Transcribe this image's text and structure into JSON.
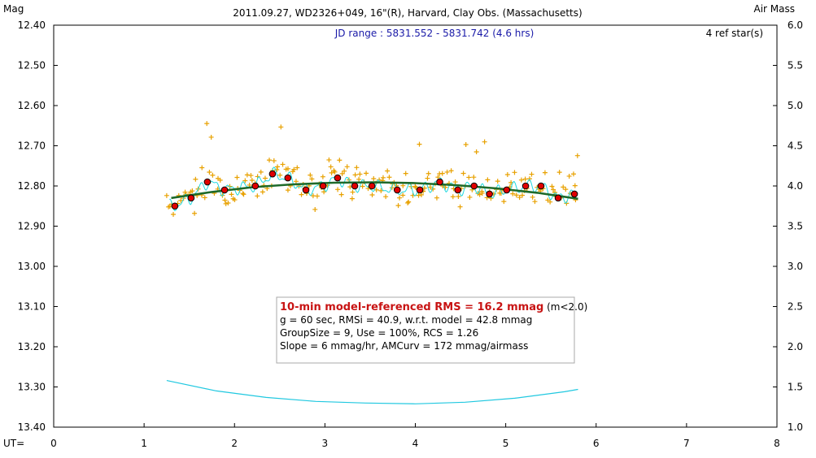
{
  "header": {
    "left_label": "Mag",
    "title": "2011.09.27, WD2326+049, 16\"(R), Harvard, Clay Obs. (Massachusetts)",
    "right_label": "Air Mass",
    "jd_range": "JD range : 5831.552 - 5831.742 (4.6 hrs)",
    "ref_stars": "4 ref star(s)",
    "x_label": "UT="
  },
  "stats": {
    "line1_bold": "10-min model-referenced RMS = 16.2 mmag",
    "line1_suffix": " (m<2.0)",
    "line2": "g = 60 sec, RMSi = 40.9, w.r.t. model = 42.8 mmag",
    "line3": "GroupSize = 9, Use = 100%, RCS = 1.26",
    "line4": "Slope = 6 mmag/hr, AMCurv = 172 mmag/airmass"
  },
  "colors": {
    "raw_points": "#e8a100",
    "group_means": "#e00000",
    "smooth": "#20d8e0",
    "model": "#1e6a2a",
    "airmass": "#20c8e0"
  },
  "chart_data": {
    "type": "scatter",
    "xlim": [
      0,
      8
    ],
    "ylim_left": [
      12.4,
      13.4
    ],
    "y_left_inverted": true,
    "ylim_right": [
      1.0,
      6.0
    ],
    "x_ticks": [
      "0",
      "1",
      "2",
      "3",
      "4",
      "5",
      "6",
      "7",
      "8"
    ],
    "y_left_ticks": [
      "12.40",
      "12.50",
      "12.60",
      "12.70",
      "12.80",
      "12.90",
      "13.00",
      "13.10",
      "13.20",
      "13.30",
      "13.40"
    ],
    "y_right_ticks": [
      "6.0",
      "5.5",
      "5.0",
      "4.5",
      "4.0",
      "3.5",
      "3.0",
      "2.5",
      "2.0",
      "1.5",
      "1.0"
    ],
    "grid": false,
    "series": [
      {
        "label": "group means",
        "x": [
          1.34,
          1.52,
          1.7,
          1.89,
          2.23,
          2.42,
          2.59,
          2.79,
          2.98,
          3.14,
          3.33,
          3.52,
          3.8,
          4.05,
          4.27,
          4.47,
          4.65,
          4.82,
          5.01,
          5.22,
          5.39,
          5.58,
          5.76
        ],
        "y": [
          12.85,
          12.83,
          12.79,
          12.81,
          12.8,
          12.77,
          12.78,
          12.81,
          12.8,
          12.78,
          12.8,
          12.8,
          12.81,
          12.81,
          12.79,
          12.81,
          12.8,
          12.82,
          12.81,
          12.8,
          12.8,
          12.83,
          12.82
        ]
      },
      {
        "label": "model",
        "x": [
          1.3,
          1.75,
          2.2,
          2.65,
          3.1,
          3.55,
          4.0,
          4.45,
          4.9,
          5.35,
          5.8
        ],
        "y": [
          12.83,
          12.815,
          12.803,
          12.796,
          12.792,
          12.791,
          12.793,
          12.798,
          12.806,
          12.817,
          12.832
        ]
      },
      {
        "label": "air mass",
        "axis": "right",
        "x": [
          1.25,
          1.8,
          2.35,
          2.9,
          3.45,
          4.0,
          4.55,
          5.1,
          5.65,
          5.8
        ],
        "y": [
          1.58,
          1.45,
          1.37,
          1.32,
          1.3,
          1.29,
          1.31,
          1.36,
          1.44,
          1.47
        ]
      }
    ]
  }
}
